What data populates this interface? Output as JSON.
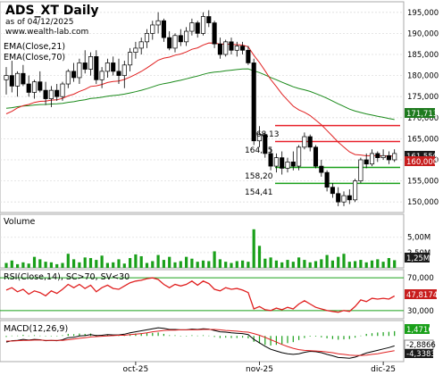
{
  "header": {
    "title": "ADS_XT Daily",
    "date_line": "as of 04/12/2025",
    "site": "www.wealth-lab.com"
  },
  "chart_data": [
    {
      "type": "candlestick",
      "panel": "price",
      "legend": [
        "EMA(Close,21)",
        "EMA(Close,70)"
      ],
      "y_ticks": [
        150000,
        155000,
        160000,
        165000,
        170000,
        175000,
        180000,
        185000,
        190000,
        195000
      ],
      "y_tick_labels": [
        "150,000",
        "155,000",
        "160,000",
        "165,000",
        "170,000",
        "175,000",
        "180,000",
        "185,000",
        "190,000",
        "195,000"
      ],
      "ylim": [
        147500,
        197500
      ],
      "last_price_label": "161,550",
      "ema70_label": "171,713",
      "ema21_label": "160,000",
      "candles": [
        {
          "o": 179.0,
          "h": 182.0,
          "l": 175.5,
          "c": 180.0
        },
        {
          "o": 180.0,
          "h": 183.5,
          "l": 176.0,
          "c": 177.5
        },
        {
          "o": 177.5,
          "h": 181.0,
          "l": 175.0,
          "c": 180.5
        },
        {
          "o": 180.5,
          "h": 182.5,
          "l": 177.5,
          "c": 178.0
        },
        {
          "o": 178.0,
          "h": 180.0,
          "l": 175.0,
          "c": 176.0
        },
        {
          "o": 176.0,
          "h": 179.0,
          "l": 174.5,
          "c": 178.5
        },
        {
          "o": 178.5,
          "h": 181.0,
          "l": 176.0,
          "c": 176.5
        },
        {
          "o": 176.5,
          "h": 178.5,
          "l": 173.0,
          "c": 174.5
        },
        {
          "o": 174.5,
          "h": 177.5,
          "l": 172.5,
          "c": 176.5
        },
        {
          "o": 176.5,
          "h": 178.0,
          "l": 174.0,
          "c": 175.0
        },
        {
          "o": 175.0,
          "h": 178.5,
          "l": 174.0,
          "c": 178.0
        },
        {
          "o": 178.0,
          "h": 181.5,
          "l": 177.0,
          "c": 181.0
        },
        {
          "o": 181.0,
          "h": 183.0,
          "l": 178.5,
          "c": 179.5
        },
        {
          "o": 179.5,
          "h": 184.0,
          "l": 178.0,
          "c": 183.0
        },
        {
          "o": 183.0,
          "h": 186.0,
          "l": 180.5,
          "c": 181.5
        },
        {
          "o": 181.5,
          "h": 185.5,
          "l": 180.0,
          "c": 184.5
        },
        {
          "o": 184.5,
          "h": 186.0,
          "l": 178.0,
          "c": 179.0
        },
        {
          "o": 179.0,
          "h": 182.0,
          "l": 177.0,
          "c": 181.0
        },
        {
          "o": 181.0,
          "h": 184.0,
          "l": 179.5,
          "c": 183.0
        },
        {
          "o": 183.0,
          "h": 184.5,
          "l": 180.0,
          "c": 181.0
        },
        {
          "o": 181.0,
          "h": 184.0,
          "l": 178.0,
          "c": 180.0
        },
        {
          "o": 180.0,
          "h": 183.5,
          "l": 177.0,
          "c": 182.5
        },
        {
          "o": 182.5,
          "h": 186.5,
          "l": 181.0,
          "c": 185.5
        },
        {
          "o": 185.5,
          "h": 188.0,
          "l": 184.0,
          "c": 186.5
        },
        {
          "o": 186.5,
          "h": 189.0,
          "l": 185.0,
          "c": 188.0
        },
        {
          "o": 188.0,
          "h": 191.0,
          "l": 186.5,
          "c": 190.0
        },
        {
          "o": 190.0,
          "h": 193.0,
          "l": 188.5,
          "c": 192.0
        },
        {
          "o": 192.0,
          "h": 195.0,
          "l": 190.0,
          "c": 193.0
        },
        {
          "o": 193.0,
          "h": 193.5,
          "l": 188.0,
          "c": 189.0
        },
        {
          "o": 189.0,
          "h": 190.5,
          "l": 186.0,
          "c": 186.5
        },
        {
          "o": 186.5,
          "h": 190.0,
          "l": 185.5,
          "c": 189.5
        },
        {
          "o": 189.5,
          "h": 191.0,
          "l": 187.0,
          "c": 188.0
        },
        {
          "o": 188.0,
          "h": 191.5,
          "l": 187.0,
          "c": 190.5
        },
        {
          "o": 190.5,
          "h": 193.5,
          "l": 189.5,
          "c": 192.5
        },
        {
          "o": 192.5,
          "h": 193.0,
          "l": 189.0,
          "c": 190.0
        },
        {
          "o": 190.0,
          "h": 195.0,
          "l": 189.5,
          "c": 194.0
        },
        {
          "o": 194.0,
          "h": 195.5,
          "l": 191.5,
          "c": 192.5
        },
        {
          "o": 192.5,
          "h": 193.0,
          "l": 186.5,
          "c": 187.5
        },
        {
          "o": 187.5,
          "h": 189.0,
          "l": 184.0,
          "c": 185.0
        },
        {
          "o": 185.0,
          "h": 188.5,
          "l": 184.5,
          "c": 188.0
        },
        {
          "o": 188.0,
          "h": 189.0,
          "l": 185.0,
          "c": 186.0
        },
        {
          "o": 186.0,
          "h": 188.0,
          "l": 184.5,
          "c": 187.0
        },
        {
          "o": 187.0,
          "h": 188.0,
          "l": 185.0,
          "c": 186.0
        },
        {
          "o": 186.0,
          "h": 187.0,
          "l": 182.5,
          "c": 183.0
        },
        {
          "o": 183.0,
          "h": 184.0,
          "l": 163.5,
          "c": 164.5
        },
        {
          "o": 164.5,
          "h": 168.0,
          "l": 163.0,
          "c": 166.0
        },
        {
          "o": 166.0,
          "h": 166.5,
          "l": 160.5,
          "c": 161.5
        },
        {
          "o": 161.5,
          "h": 163.0,
          "l": 157.5,
          "c": 158.5
        },
        {
          "o": 158.5,
          "h": 161.5,
          "l": 157.0,
          "c": 160.5
        },
        {
          "o": 160.5,
          "h": 162.0,
          "l": 156.5,
          "c": 158.0
        },
        {
          "o": 158.0,
          "h": 160.5,
          "l": 157.0,
          "c": 159.5
        },
        {
          "o": 159.5,
          "h": 162.0,
          "l": 157.5,
          "c": 158.5
        },
        {
          "o": 158.5,
          "h": 163.5,
          "l": 157.5,
          "c": 163.0
        },
        {
          "o": 163.0,
          "h": 166.5,
          "l": 162.5,
          "c": 165.5
        },
        {
          "o": 165.5,
          "h": 166.0,
          "l": 162.0,
          "c": 163.0
        },
        {
          "o": 163.0,
          "h": 163.5,
          "l": 158.0,
          "c": 158.5
        },
        {
          "o": 158.5,
          "h": 160.0,
          "l": 156.0,
          "c": 157.0
        },
        {
          "o": 157.0,
          "h": 157.5,
          "l": 152.5,
          "c": 153.5
        },
        {
          "o": 153.5,
          "h": 154.5,
          "l": 151.0,
          "c": 152.0
        },
        {
          "o": 152.0,
          "h": 153.5,
          "l": 149.0,
          "c": 150.0
        },
        {
          "o": 150.0,
          "h": 152.5,
          "l": 149.0,
          "c": 151.5
        },
        {
          "o": 151.5,
          "h": 153.0,
          "l": 149.5,
          "c": 150.5
        },
        {
          "o": 150.5,
          "h": 155.5,
          "l": 150.0,
          "c": 155.0
        },
        {
          "o": 155.0,
          "h": 160.5,
          "l": 154.5,
          "c": 160.0
        },
        {
          "o": 160.0,
          "h": 161.5,
          "l": 158.0,
          "c": 159.0
        },
        {
          "o": 159.0,
          "h": 162.5,
          "l": 158.5,
          "c": 161.5
        },
        {
          "o": 161.5,
          "h": 162.0,
          "l": 159.5,
          "c": 160.5
        },
        {
          "o": 160.5,
          "h": 162.5,
          "l": 160.0,
          "c": 161.0
        },
        {
          "o": 161.0,
          "h": 162.0,
          "l": 159.0,
          "c": 160.0
        },
        {
          "o": 160.0,
          "h": 162.5,
          "l": 159.5,
          "c": 161.5
        }
      ],
      "levels": [
        {
          "value": 168.13,
          "label": "168,13",
          "color": "#e8202a"
        },
        {
          "value": 164.35,
          "label": "164,35",
          "color": "#e8202a"
        },
        {
          "value": 158.2,
          "label": "158,20",
          "color": "#1aa01a"
        },
        {
          "value": 154.41,
          "label": "154,41",
          "color": "#1aa01a"
        }
      ],
      "x_labels": [
        {
          "index": 23,
          "text": "oct-25"
        },
        {
          "index": 45,
          "text": "nov-25"
        },
        {
          "index": 67,
          "text": "dic-25"
        }
      ]
    },
    {
      "type": "bar",
      "panel": "volume",
      "title": "Volume",
      "y_tick_labels": [
        "5,00M",
        "2,50M"
      ],
      "ylim": [
        0,
        7.0
      ],
      "last_label": "1,25M",
      "values": [
        0.8,
        1.2,
        0.6,
        0.9,
        0.7,
        1.8,
        1.4,
        1.0,
        0.9,
        0.6,
        0.8,
        2.3,
        1.4,
        0.9,
        1.7,
        1.6,
        1.3,
        2.0,
        0.8,
        0.9,
        1.4,
        0.7,
        1.6,
        2.2,
        1.9,
        0.8,
        1.1,
        2.1,
        1.3,
        1.8,
        0.9,
        1.1,
        1.8,
        1.5,
        1.0,
        1.2,
        1.1,
        2.7,
        1.4,
        1.0,
        0.8,
        1.1,
        1.2,
        1.0,
        6.3,
        3.6,
        1.5,
        1.7,
        1.2,
        0.9,
        1.3,
        1.0,
        1.7,
        1.3,
        0.9,
        1.1,
        1.4,
        2.1,
        1.2,
        1.8,
        2.3,
        1.0,
        1.1,
        1.3,
        0.9,
        1.2,
        1.4,
        1.0,
        1.6,
        1.25
      ]
    },
    {
      "type": "line",
      "panel": "rsi",
      "title": "RSI(Close,14), SC>70, SV<30",
      "y_tick_labels": [
        "70,000",
        "30,000"
      ],
      "ylim": [
        20,
        80
      ],
      "last_label": "47,8174",
      "bands": [
        70,
        30
      ],
      "values": [
        55,
        58,
        53,
        56,
        50,
        54,
        52,
        48,
        54,
        51,
        56,
        62,
        58,
        62,
        57,
        61,
        53,
        58,
        61,
        57,
        56,
        60,
        64,
        66,
        67,
        69,
        70,
        68,
        62,
        58,
        62,
        60,
        62,
        66,
        61,
        66,
        63,
        56,
        54,
        58,
        56,
        57,
        55,
        52,
        32,
        35,
        31,
        30,
        33,
        31,
        34,
        32,
        38,
        42,
        38,
        34,
        32,
        30,
        29,
        28,
        30,
        29,
        35,
        43,
        41,
        45,
        44,
        45,
        44,
        47.8
      ]
    },
    {
      "type": "line",
      "panel": "macd",
      "title": "MACD(12,26,9)",
      "ylim": [
        -7.5,
        4.5
      ],
      "labels": [
        "1,4716",
        "-2,8866",
        "-4,3383"
      ],
      "macd": [
        -1.8,
        -1.4,
        -1.3,
        -1.0,
        -1.2,
        -1.0,
        -1.1,
        -1.4,
        -1.3,
        -1.4,
        -1.1,
        -0.5,
        -0.4,
        0.0,
        0.1,
        0.4,
        0.1,
        0.2,
        0.4,
        0.3,
        0.3,
        0.5,
        0.9,
        1.2,
        1.5,
        1.8,
        2.1,
        2.4,
        2.2,
        1.9,
        1.9,
        1.8,
        1.8,
        2.0,
        1.9,
        2.1,
        2.0,
        1.6,
        1.2,
        1.1,
        0.9,
        0.8,
        0.7,
        0.4,
        -1.0,
        -2.0,
        -3.0,
        -3.9,
        -4.4,
        -4.9,
        -5.2,
        -5.4,
        -5.2,
        -4.8,
        -4.5,
        -4.6,
        -4.9,
        -5.4,
        -5.8,
        -6.3,
        -6.4,
        -6.5,
        -6.2,
        -5.6,
        -5.0,
        -4.6,
        -4.2,
        -3.8,
        -3.4,
        -2.9
      ],
      "signal": [
        -1.5,
        -1.5,
        -1.4,
        -1.3,
        -1.3,
        -1.2,
        -1.2,
        -1.3,
        -1.3,
        -1.3,
        -1.3,
        -1.1,
        -0.9,
        -0.7,
        -0.5,
        -0.3,
        -0.2,
        -0.1,
        0.0,
        0.1,
        0.2,
        0.2,
        0.4,
        0.5,
        0.7,
        0.9,
        1.2,
        1.4,
        1.6,
        1.7,
        1.7,
        1.8,
        1.8,
        1.8,
        1.8,
        1.9,
        1.9,
        1.9,
        1.8,
        1.6,
        1.5,
        1.4,
        1.2,
        1.1,
        0.7,
        0.2,
        -0.4,
        -1.1,
        -1.8,
        -2.5,
        -3.1,
        -3.6,
        -4.0,
        -4.2,
        -4.3,
        -4.4,
        -4.5,
        -4.7,
        -4.9,
        -5.2,
        -5.4,
        -5.6,
        -5.7,
        -5.7,
        -5.6,
        -5.4,
        -5.2,
        -4.9,
        -4.6,
        -4.3
      ]
    }
  ]
}
